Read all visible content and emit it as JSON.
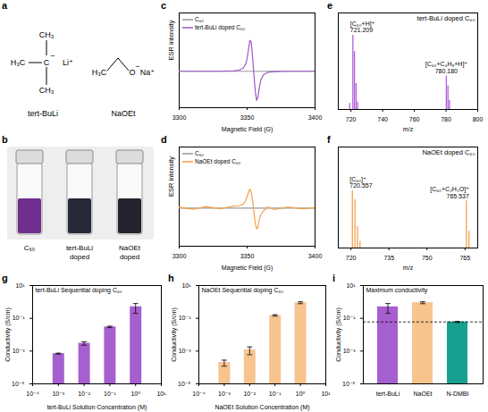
{
  "panel_a": {
    "panel": "a",
    "molecules": [
      {
        "name": "tert-BuLi",
        "groups": [
          "H₃C",
          "CH₃",
          "CH₃"
        ],
        "center": "C",
        "charge": "−",
        "counterion": "Li⁺"
      },
      {
        "name": "NaOEt",
        "groups": [
          "H₃C"
        ],
        "center": "O",
        "charge": "−",
        "counterion": "Na⁺"
      }
    ]
  },
  "panel_b": {
    "panel": "b",
    "vials": [
      {
        "label": "C₆₀",
        "color": "#6e2f8e"
      },
      {
        "label": "tert-BuLi doped",
        "color": "#262838"
      },
      {
        "label": "NaOEt doped",
        "color": "#24232e"
      }
    ]
  },
  "chart_data": [
    {
      "panel": "c",
      "type": "line",
      "x_label": "Magnetic Field (G)",
      "y_label": "ESR intensity",
      "x": [
        3300,
        3310,
        3320,
        3330,
        3340,
        3344,
        3347,
        3349,
        3350,
        3351,
        3352,
        3353,
        3354,
        3355,
        3356,
        3357,
        3358,
        3359,
        3360,
        3362,
        3365,
        3370,
        3380,
        3390,
        3400
      ],
      "series": [
        {
          "name": "C₆₀",
          "color": "#999999",
          "values": [
            0,
            0,
            0,
            0,
            0,
            0,
            0,
            0,
            0,
            0,
            0,
            0,
            0,
            0,
            0,
            0,
            0,
            0,
            0,
            0,
            0,
            0,
            0,
            0,
            0
          ]
        },
        {
          "name": "tert-BuLi doped C₆₀",
          "color": "#9b59c8",
          "values": [
            0,
            0,
            0,
            0,
            0.01,
            0.03,
            0.08,
            0.2,
            0.35,
            0.6,
            0.85,
            0.8,
            0.4,
            -0.1,
            -0.55,
            -0.8,
            -0.7,
            -0.45,
            -0.25,
            -0.1,
            -0.03,
            -0.01,
            0,
            0,
            0
          ]
        }
      ],
      "xlim": [
        3300,
        3400
      ],
      "xticks": [
        3300,
        3350,
        3400
      ],
      "ylim": [
        -1,
        1.6
      ],
      "yticks": [],
      "tick_labels": "x",
      "legend": "upper left"
    },
    {
      "panel": "d",
      "type": "line",
      "x_label": "Magnetic Field (G)",
      "y_label": "ESR intensity",
      "x": [
        3300,
        3310,
        3320,
        3330,
        3340,
        3344,
        3347,
        3349,
        3350,
        3351,
        3352,
        3353,
        3354,
        3355,
        3356,
        3357,
        3358,
        3359,
        3360,
        3362,
        3365,
        3370,
        3380,
        3390,
        3400
      ],
      "series": [
        {
          "name": "C₆₀",
          "color": "#999999",
          "values": [
            0,
            0,
            0,
            0,
            0,
            0,
            0,
            0,
            0,
            0,
            0,
            0,
            0,
            0,
            0,
            0,
            0,
            0,
            0,
            0,
            0,
            0,
            0,
            0,
            0
          ]
        },
        {
          "name": "NaOEt doped C₆₀",
          "color": "#f5a14a",
          "values": [
            0.02,
            -0.03,
            0.04,
            -0.02,
            0.05,
            0.06,
            0.1,
            0.2,
            0.3,
            0.4,
            0.5,
            0.42,
            0.2,
            -0.1,
            -0.4,
            -0.55,
            -0.5,
            -0.3,
            -0.18,
            -0.08,
            0.03,
            -0.04,
            0.03,
            -0.02,
            0.01
          ]
        }
      ],
      "xlim": [
        3300,
        3400
      ],
      "xticks": [
        3300,
        3350,
        3400
      ],
      "ylim": [
        -1,
        1.6
      ],
      "yticks": [],
      "tick_labels": "x",
      "legend": "upper left"
    },
    {
      "panel": "e",
      "type": "stem",
      "title": "tert-BuLi doped C₆₀",
      "x_label": "m/z",
      "x": [
        719.2,
        721.209,
        722.2,
        723.2,
        724.2,
        780.18,
        781.2,
        782.2
      ],
      "series": [
        {
          "name": "tert-BuLi doped C₆₀",
          "color": "#b060d8",
          "values": [
            0.08,
            1.0,
            0.78,
            0.35,
            0.1,
            0.45,
            0.32,
            0.12
          ]
        }
      ],
      "annotations": [
        {
          "x": 721.209,
          "text": [
            "[C₆₀+H]⁺",
            "721.209"
          ]
        },
        {
          "x": 780.18,
          "text": [
            "[C₆₀+C₄H₉+H]⁺",
            "780.180"
          ]
        }
      ],
      "xlim": [
        712,
        800
      ],
      "xticks": [
        720,
        740,
        760,
        780,
        800
      ],
      "ylim": [
        0,
        1.3
      ],
      "yticks": [],
      "tick_labels": "x"
    },
    {
      "panel": "f",
      "type": "stem",
      "title": "NaOEt doped C₆₀",
      "x_label": "m/z",
      "x": [
        720.557,
        721.56,
        722.56,
        723.56,
        765.537,
        766.54
      ],
      "series": [
        {
          "name": "NaOEt doped C₆₀",
          "color": "#f6a04e",
          "values": [
            0.85,
            0.72,
            0.32,
            0.1,
            0.7,
            0.25
          ]
        }
      ],
      "annotations": [
        {
          "x": 720.557,
          "text": [
            "[C₆₀]⁺",
            "720.557"
          ]
        },
        {
          "x": 765.537,
          "text": [
            "[C₆₀+C₂H₅O]⁺",
            "765.537"
          ]
        }
      ],
      "xlim": [
        715,
        770
      ],
      "xticks": [
        720,
        735,
        750,
        765
      ],
      "ylim": [
        0,
        1.5
      ],
      "yticks": [],
      "tick_labels": "x"
    },
    {
      "panel": "g",
      "type": "bar",
      "title": "tert-BuLi Sequential doping C₆₀",
      "x_label": "tert-BuLi Solution Concentration (M)",
      "y_label": "Conductivity (S/cm)",
      "x": [
        0.001,
        0.01,
        0.1,
        1
      ],
      "values": [
        0.0007,
        0.003,
        0.03,
        0.5
      ],
      "errors": [
        5e-05,
        0.0007,
        0.003,
        0.3
      ],
      "color": "#a65fcf",
      "log": true,
      "xlim": [
        0.0001,
        10
      ],
      "xticks": [
        {
          "value": 0.0001,
          "label": "10⁻⁴"
        },
        {
          "value": 0.001,
          "label": "10⁻³"
        },
        {
          "value": 0.01,
          "label": "10⁻²"
        },
        {
          "value": 0.1,
          "label": "10⁻¹"
        },
        {
          "value": 1,
          "label": "10⁰"
        },
        {
          "value": 10,
          "label": "10¹"
        }
      ],
      "ylim": [
        1e-05,
        10
      ],
      "yticks": [
        {
          "value": 1e-05,
          "label": "10⁻⁵"
        },
        {
          "value": 0.001,
          "label": "10⁻³"
        },
        {
          "value": 0.1,
          "label": "10⁻¹"
        },
        {
          "value": 10,
          "label": "10¹"
        }
      ]
    },
    {
      "panel": "h",
      "type": "bar",
      "title": "NaOEt Sequential doping C₆₀",
      "x_label": "NaOEt Solution Concentration (M)",
      "y_label": "Conductivity (S/cm)",
      "x": [
        0.001,
        0.01,
        0.1,
        1
      ],
      "values": [
        0.0002,
        0.0012,
        0.15,
        0.9
      ],
      "errors": [
        8e-05,
        0.0006,
        0.015,
        0.12
      ],
      "color": "#f7c48e",
      "log": true,
      "xlim": [
        0.0001,
        10
      ],
      "xticks": [
        {
          "value": 0.0001,
          "label": "10⁻⁴"
        },
        {
          "value": 0.001,
          "label": "10⁻³"
        },
        {
          "value": 0.01,
          "label": "10⁻²"
        },
        {
          "value": 0.1,
          "label": "10⁻¹"
        },
        {
          "value": 1,
          "label": "10⁰"
        },
        {
          "value": 10,
          "label": "10¹"
        }
      ],
      "ylim": [
        1e-05,
        10
      ],
      "yticks": [
        {
          "value": 1e-05,
          "label": "10⁻⁵"
        },
        {
          "value": 0.001,
          "label": "10⁻³"
        },
        {
          "value": 0.1,
          "label": "10⁻¹"
        },
        {
          "value": 10,
          "label": "10¹"
        }
      ]
    },
    {
      "panel": "i",
      "type": "bar",
      "title": "Maximum conductivity",
      "y_label": "Conductivity (S/cm)",
      "categories": [
        "tert-BuLi",
        "NaOEt",
        "N-DMBI"
      ],
      "values": [
        0.5,
        0.9,
        0.06
      ],
      "errors": [
        0.3,
        0.12,
        0.005
      ],
      "colors": [
        "#a65fcf",
        "#f7c48e",
        "#17a08f"
      ],
      "log": "y",
      "reference_line": {
        "value": 0.06,
        "line_style": "dashed"
      },
      "ylim": [
        1e-05,
        10
      ],
      "yticks": [
        {
          "value": 1e-05,
          "label": "10⁻⁵"
        },
        {
          "value": 0.001,
          "label": "10⁻³"
        },
        {
          "value": 0.1,
          "label": "10⁻¹"
        },
        {
          "value": 10,
          "label": "10¹"
        }
      ]
    }
  ]
}
